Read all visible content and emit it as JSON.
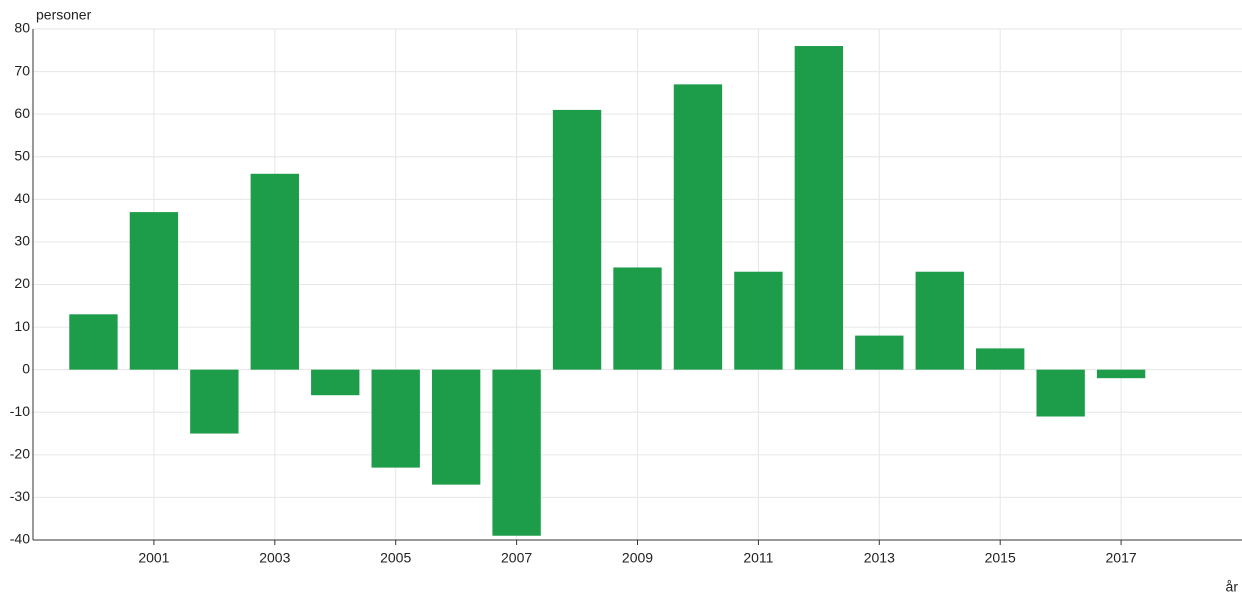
{
  "chart_data": {
    "type": "bar",
    "y_label": "personer",
    "x_label": "år",
    "x": [
      2000,
      2001,
      2002,
      2003,
      2004,
      2005,
      2006,
      2007,
      2008,
      2009,
      2010,
      2011,
      2012,
      2013,
      2014,
      2015,
      2016,
      2017
    ],
    "values": [
      13,
      37,
      -15,
      46,
      -6,
      -23,
      -27,
      -39,
      61,
      24,
      67,
      23,
      76,
      8,
      23,
      5,
      -11,
      -2
    ],
    "color": "#1d9c4a",
    "xlim": [
      1999,
      2019
    ],
    "xticks": [
      2001,
      2003,
      2005,
      2007,
      2009,
      2011,
      2013,
      2015,
      2017
    ],
    "ylim": [
      -40,
      80
    ],
    "yticks": [
      -40,
      -30,
      -20,
      -10,
      0,
      10,
      20,
      30,
      40,
      50,
      60,
      70,
      80
    ],
    "grid": true
  }
}
